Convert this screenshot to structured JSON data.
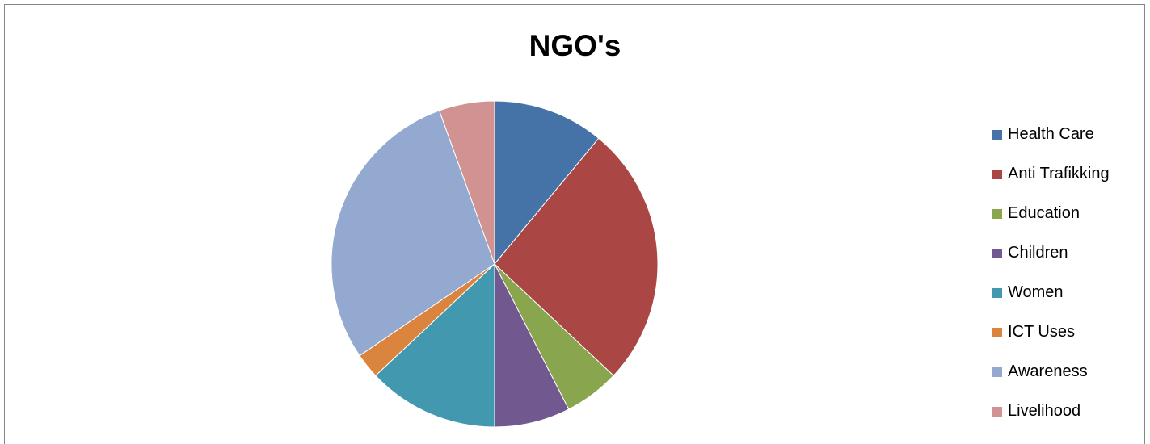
{
  "chart_data": {
    "type": "pie",
    "title": "NGO's",
    "legend_position": "right",
    "slices": [
      {
        "label": "Health Care",
        "value": 11,
        "color": "#4572A7"
      },
      {
        "label": "Anti Trafikking",
        "value": 26,
        "color": "#AA4643"
      },
      {
        "label": "Education",
        "value": 5.5,
        "color": "#89A54E"
      },
      {
        "label": "Children",
        "value": 7.5,
        "color": "#71588F"
      },
      {
        "label": "Women",
        "value": 13,
        "color": "#4198AF"
      },
      {
        "label": "ICT Uses",
        "value": 2.5,
        "color": "#DB843D"
      },
      {
        "label": "Awareness",
        "value": 29,
        "color": "#93A9CF"
      },
      {
        "label": "Livelihood",
        "value": 5.5,
        "color": "#D19392"
      }
    ]
  }
}
